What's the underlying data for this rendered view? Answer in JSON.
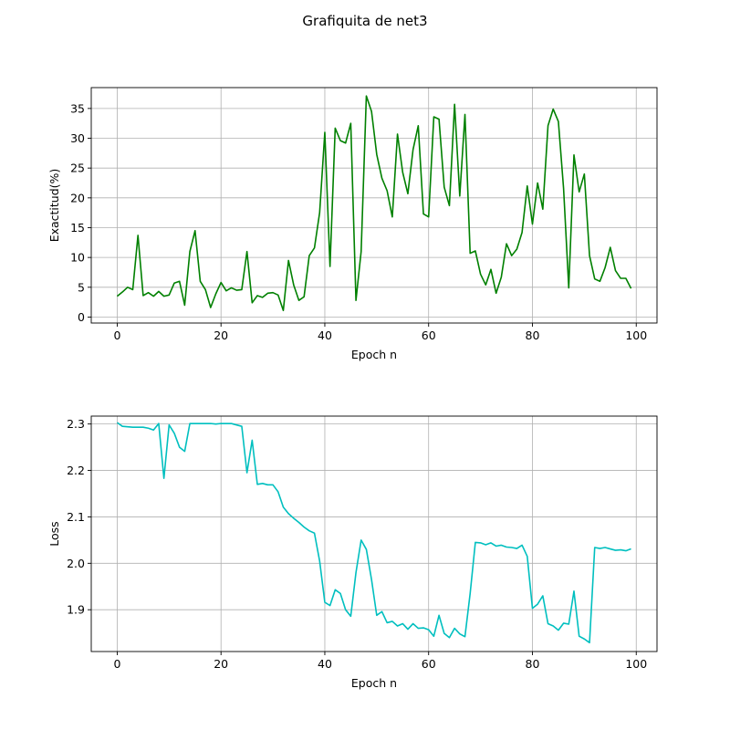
{
  "figure": {
    "title": "Grafiquita de net3"
  },
  "chart_data": [
    {
      "type": "line",
      "title": "",
      "xlabel": "Epoch n",
      "ylabel": "Exactitud(%)",
      "grid": true,
      "xlim": [
        -5,
        104
      ],
      "ylim": [
        -1,
        38.5
      ],
      "xticks": [
        0,
        20,
        40,
        60,
        80,
        100
      ],
      "yticks": [
        0,
        5,
        10,
        15,
        20,
        25,
        30,
        35
      ],
      "xtick_labels": [
        "0",
        "20",
        "40",
        "60",
        "80",
        "100"
      ],
      "ytick_labels": [
        "0",
        "5",
        "10",
        "15",
        "20",
        "25",
        "30",
        "35"
      ],
      "series": [
        {
          "color": "#008000",
          "x": [
            0,
            1,
            2,
            3,
            4,
            5,
            6,
            7,
            8,
            9,
            10,
            11,
            12,
            13,
            14,
            15,
            16,
            17,
            18,
            19,
            20,
            21,
            22,
            23,
            24,
            25,
            26,
            27,
            28,
            29,
            30,
            31,
            32,
            33,
            34,
            35,
            36,
            37,
            38,
            39,
            40,
            41,
            42,
            43,
            44,
            45,
            46,
            47,
            48,
            49,
            50,
            51,
            52,
            53,
            54,
            55,
            56,
            57,
            58,
            59,
            60,
            61,
            62,
            63,
            64,
            65,
            66,
            67,
            68,
            69,
            70,
            71,
            72,
            73,
            74,
            75,
            76,
            77,
            78,
            79,
            80,
            81,
            82,
            83,
            84,
            85,
            86,
            87,
            88,
            89,
            90,
            91,
            92,
            93,
            94,
            95,
            96,
            97,
            98,
            99
          ],
          "values": [
            3.5,
            4.2,
            5.0,
            4.6,
            13.7,
            3.6,
            4.1,
            3.5,
            4.3,
            3.5,
            3.7,
            5.7,
            6.0,
            2.0,
            11.0,
            14.5,
            6.0,
            4.6,
            1.6,
            3.9,
            5.8,
            4.4,
            4.9,
            4.5,
            4.6,
            11.0,
            2.4,
            3.6,
            3.3,
            4.0,
            4.1,
            3.7,
            1.1,
            9.5,
            5.4,
            2.8,
            3.4,
            10.3,
            11.6,
            17.5,
            31.0,
            8.5,
            31.7,
            29.6,
            29.2,
            32.5,
            2.8,
            11.0,
            37.1,
            34.5,
            27.3,
            23.3,
            21.2,
            16.8,
            30.7,
            24.3,
            20.7,
            28.1,
            32.1,
            17.3,
            16.8,
            33.6,
            33.2,
            21.8,
            18.7,
            35.7,
            20.3,
            34.0,
            10.7,
            11.1,
            7.2,
            5.4,
            8.0,
            4.0,
            6.7,
            12.3,
            10.3,
            11.4,
            14.2,
            22.0,
            15.6,
            22.5,
            18.1,
            32.1,
            34.9,
            32.8,
            21.6,
            4.9,
            27.2,
            21.0,
            24.0,
            10.3,
            6.4,
            6.0,
            8.3,
            11.7,
            7.8,
            6.5,
            6.5,
            4.8
          ]
        }
      ]
    },
    {
      "type": "line",
      "title": "",
      "xlabel": "Epoch n",
      "ylabel": "Loss",
      "grid": true,
      "xlim": [
        -5,
        104
      ],
      "ylim": [
        1.81,
        2.317
      ],
      "xticks": [
        0,
        20,
        40,
        60,
        80,
        100
      ],
      "yticks": [
        1.9,
        2.0,
        2.1,
        2.2,
        2.3
      ],
      "xtick_labels": [
        "0",
        "20",
        "40",
        "60",
        "80",
        "100"
      ],
      "ytick_labels": [
        "1.9",
        "2.0",
        "2.1",
        "2.2",
        "2.3"
      ],
      "series": [
        {
          "color": "#00bfbf",
          "x": [
            0,
            1,
            2,
            3,
            4,
            5,
            6,
            7,
            8,
            9,
            10,
            11,
            12,
            13,
            14,
            15,
            16,
            17,
            18,
            19,
            20,
            21,
            22,
            23,
            24,
            25,
            26,
            27,
            28,
            29,
            30,
            31,
            32,
            33,
            34,
            35,
            36,
            37,
            38,
            39,
            40,
            41,
            42,
            43,
            44,
            45,
            46,
            47,
            48,
            49,
            50,
            51,
            52,
            53,
            54,
            55,
            56,
            57,
            58,
            59,
            60,
            61,
            62,
            63,
            64,
            65,
            66,
            67,
            68,
            69,
            70,
            71,
            72,
            73,
            74,
            75,
            76,
            77,
            78,
            79,
            80,
            81,
            82,
            83,
            84,
            85,
            86,
            87,
            88,
            89,
            90,
            91,
            92,
            93,
            94,
            95,
            96,
            97,
            98,
            99
          ],
          "values": [
            2.303,
            2.295,
            2.294,
            2.293,
            2.293,
            2.293,
            2.291,
            2.287,
            2.301,
            2.183,
            2.298,
            2.28,
            2.25,
            2.241,
            2.301,
            2.301,
            2.301,
            2.301,
            2.301,
            2.3,
            2.301,
            2.301,
            2.301,
            2.298,
            2.295,
            2.195,
            2.265,
            2.17,
            2.172,
            2.169,
            2.169,
            2.154,
            2.121,
            2.107,
            2.097,
            2.088,
            2.078,
            2.07,
            2.065,
            2.005,
            1.916,
            1.909,
            1.943,
            1.935,
            1.9,
            1.886,
            1.98,
            2.05,
            2.03,
            1.965,
            1.888,
            1.896,
            1.872,
            1.875,
            1.865,
            1.87,
            1.858,
            1.87,
            1.86,
            1.861,
            1.857,
            1.843,
            1.888,
            1.849,
            1.84,
            1.86,
            1.848,
            1.842,
            1.935,
            2.045,
            2.044,
            2.04,
            2.044,
            2.037,
            2.039,
            2.035,
            2.034,
            2.032,
            2.039,
            2.015,
            1.903,
            1.912,
            1.93,
            1.87,
            1.865,
            1.856,
            1.871,
            1.869,
            1.94,
            1.843,
            1.837,
            1.829,
            2.034,
            2.032,
            2.034,
            2.031,
            2.028,
            2.029,
            2.027,
            2.031
          ]
        }
      ]
    }
  ]
}
